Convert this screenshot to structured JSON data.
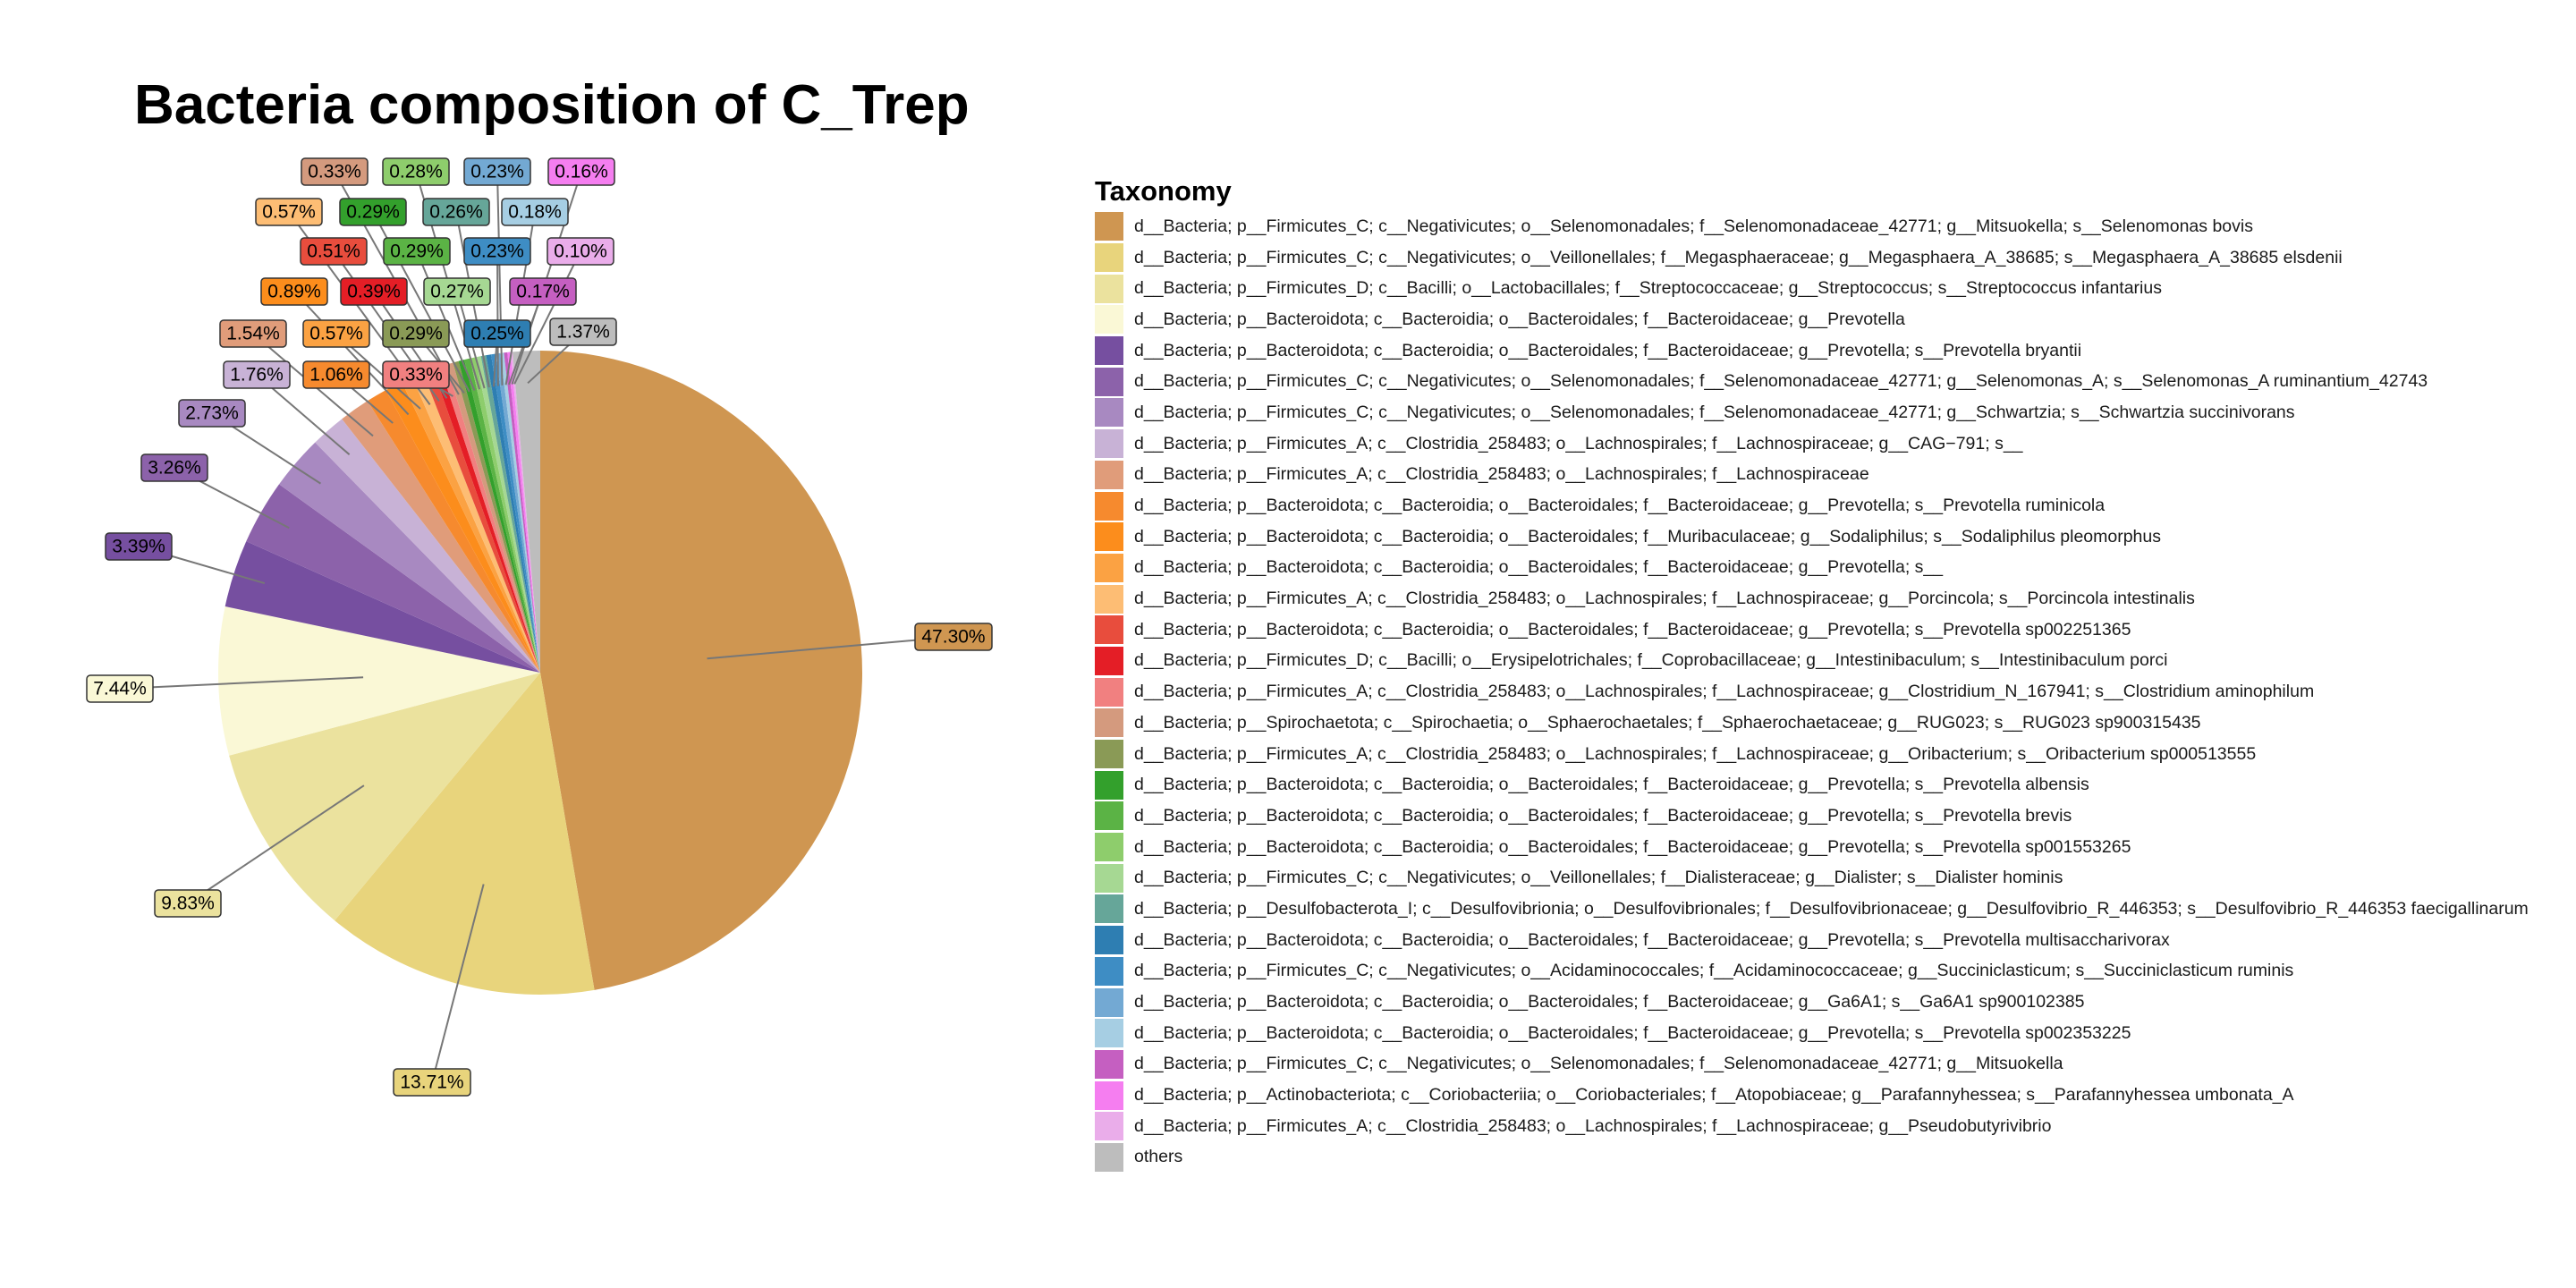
{
  "chart_data": {
    "type": "pie",
    "title": "Bacteria composition of C_Trep",
    "legend_title": "Taxonomy",
    "legend_position": "right",
    "slices": [
      {
        "label": "d__Bacteria; p__Firmicutes_C; c__Negativicutes; o__Selenomonadales; f__Selenomonadaceae_42771; g__Mitsuokella; s__Selenomonas bovis",
        "value": 47.3,
        "value_label": "47.30%",
        "color": "#CF9651"
      },
      {
        "label": "d__Bacteria; p__Firmicutes_C; c__Negativicutes; o__Veillonellales; f__Megasphaeraceae; g__Megasphaera_A_38685; s__Megasphaera_A_38685 elsdenii",
        "value": 13.71,
        "value_label": "13.71%",
        "color": "#E8D47C"
      },
      {
        "label": "d__Bacteria; p__Firmicutes_D; c__Bacilli; o__Lactobacillales; f__Streptococcaceae; g__Streptococcus; s__Streptococcus infantarius",
        "value": 9.83,
        "value_label": "9.83%",
        "color": "#EBE29E"
      },
      {
        "label": "d__Bacteria; p__Bacteroidota; c__Bacteroidia; o__Bacteroidales; f__Bacteroidaceae; g__Prevotella",
        "value": 7.44,
        "value_label": "7.44%",
        "color": "#FAF8D6"
      },
      {
        "label": "d__Bacteria; p__Bacteroidota; c__Bacteroidia; o__Bacteroidales; f__Bacteroidaceae; g__Prevotella; s__Prevotella bryantii",
        "value": 3.39,
        "value_label": "3.39%",
        "color": "#764FA0"
      },
      {
        "label": "d__Bacteria; p__Firmicutes_C; c__Negativicutes; o__Selenomonadales; f__Selenomonadaceae_42771; g__Selenomonas_A; s__Selenomonas_A ruminantium_42743",
        "value": 3.26,
        "value_label": "3.26%",
        "color": "#8C62AA"
      },
      {
        "label": "d__Bacteria; p__Firmicutes_C; c__Negativicutes; o__Selenomonadales; f__Selenomonadaceae_42771; g__Schwartzia; s__Schwartzia succinivorans",
        "value": 2.73,
        "value_label": "2.73%",
        "color": "#A889C1"
      },
      {
        "label": "d__Bacteria; p__Firmicutes_A; c__Clostridia_258483; o__Lachnospirales; f__Lachnospiraceae; g__CAG−791; s__",
        "value": 1.76,
        "value_label": "1.76%",
        "color": "#C8B2D6"
      },
      {
        "label": "d__Bacteria; p__Firmicutes_A; c__Clostridia_258483; o__Lachnospirales; f__Lachnospiraceae",
        "value": 1.54,
        "value_label": "1.54%",
        "color": "#E09C7A"
      },
      {
        "label": "d__Bacteria; p__Bacteroidota; c__Bacteroidia; o__Bacteroidales; f__Bacteroidaceae; g__Prevotella; s__Prevotella ruminicola",
        "value": 1.06,
        "value_label": "1.06%",
        "color": "#F68A2E"
      },
      {
        "label": "d__Bacteria; p__Bacteroidota; c__Bacteroidia; o__Bacteroidales; f__Muribaculaceae; g__Sodaliphilus; s__Sodaliphilus pleomorphus",
        "value": 0.89,
        "value_label": "0.89%",
        "color": "#FC8D1C"
      },
      {
        "label": "d__Bacteria; p__Bacteroidota; c__Bacteroidia; o__Bacteroidales; f__Bacteroidaceae; g__Prevotella; s__",
        "value": 0.57,
        "value_label": "0.57%",
        "color": "#FBA243"
      },
      {
        "label": "d__Bacteria; p__Firmicutes_A; c__Clostridia_258483; o__Lachnospirales; f__Lachnospiraceae; g__Porcincola; s__Porcincola intestinalis",
        "value": 0.57,
        "value_label": "0.57%",
        "color": "#FDBD74"
      },
      {
        "label": "d__Bacteria; p__Bacteroidota; c__Bacteroidia; o__Bacteroidales; f__Bacteroidaceae; g__Prevotella; s__Prevotella sp002251365",
        "value": 0.51,
        "value_label": "0.51%",
        "color": "#E84D3D"
      },
      {
        "label": "d__Bacteria; p__Firmicutes_D; c__Bacilli; o__Erysipelotrichales; f__Coprobacillaceae; g__Intestinibaculum; s__Intestinibaculum porci",
        "value": 0.39,
        "value_label": "0.39%",
        "color": "#E41E26"
      },
      {
        "label": "d__Bacteria; p__Firmicutes_A; c__Clostridia_258483; o__Lachnospirales; f__Lachnospiraceae; g__Clostridium_N_167941; s__Clostridium aminophilum",
        "value": 0.33,
        "value_label": "0.33%",
        "color": "#F18080"
      },
      {
        "label": "d__Bacteria; p__Spirochaetota; c__Spirochaetia; o__Sphaerochaetales; f__Sphaerochaetaceae; g__RUG023; s__RUG023 sp900315435",
        "value": 0.33,
        "value_label": "0.33%",
        "color": "#D49A7E"
      },
      {
        "label": "d__Bacteria; p__Firmicutes_A; c__Clostridia_258483; o__Lachnospirales; f__Lachnospiraceae; g__Oribacterium; s__Oribacterium sp000513555",
        "value": 0.29,
        "value_label": "0.29%",
        "color": "#8A9A56"
      },
      {
        "label": "d__Bacteria; p__Bacteroidota; c__Bacteroidia; o__Bacteroidales; f__Bacteroidaceae; g__Prevotella; s__Prevotella albensis",
        "value": 0.29,
        "value_label": "0.29%",
        "color": "#33A02C"
      },
      {
        "label": "d__Bacteria; p__Bacteroidota; c__Bacteroidia; o__Bacteroidales; f__Bacteroidaceae; g__Prevotella; s__Prevotella brevis",
        "value": 0.29,
        "value_label": "0.29%",
        "color": "#5BB345"
      },
      {
        "label": "d__Bacteria; p__Bacteroidota; c__Bacteroidia; o__Bacteroidales; f__Bacteroidaceae; g__Prevotella; s__Prevotella sp001553265",
        "value": 0.28,
        "value_label": "0.28%",
        "color": "#8ECD6C"
      },
      {
        "label": "d__Bacteria; p__Firmicutes_C; c__Negativicutes; o__Veillonellales; f__Dialisteraceae; g__Dialister; s__Dialister hominis",
        "value": 0.27,
        "value_label": "0.27%",
        "color": "#A6D893"
      },
      {
        "label": "d__Bacteria; p__Desulfobacterota_I; c__Desulfovibrionia; o__Desulfovibrionales; f__Desulfovibrionaceae; g__Desulfovibrio_R_446353; s__Desulfovibrio_R_446353 faecigallinarum",
        "value": 0.26,
        "value_label": "0.26%",
        "color": "#66A699"
      },
      {
        "label": "d__Bacteria; p__Bacteroidota; c__Bacteroidia; o__Bacteroidales; f__Bacteroidaceae; g__Prevotella; s__Prevotella multisaccharivorax",
        "value": 0.25,
        "value_label": "0.25%",
        "color": "#2E7EB2"
      },
      {
        "label": "d__Bacteria; p__Firmicutes_C; c__Negativicutes; o__Acidaminococcales; f__Acidaminococcaceae; g__Succiniclasticum; s__Succiniclasticum ruminis",
        "value": 0.23,
        "value_label": "0.23%",
        "color": "#3E8DC4"
      },
      {
        "label": "d__Bacteria; p__Bacteroidota; c__Bacteroidia; o__Bacteroidales; f__Bacteroidaceae; g__Ga6A1; s__Ga6A1 sp900102385",
        "value": 0.23,
        "value_label": "0.23%",
        "color": "#73A9D3"
      },
      {
        "label": "d__Bacteria; p__Bacteroidota; c__Bacteroidia; o__Bacteroidales; f__Bacteroidaceae; g__Prevotella; s__Prevotella sp002353225",
        "value": 0.18,
        "value_label": "0.18%",
        "color": "#A6CEE3"
      },
      {
        "label": "d__Bacteria; p__Firmicutes_C; c__Negativicutes; o__Selenomonadales; f__Selenomonadaceae_42771; g__Mitsuokella",
        "value": 0.17,
        "value_label": "0.17%",
        "color": "#C55FC1"
      },
      {
        "label": "d__Bacteria; p__Actinobacteriota; c__Coriobacteriia; o__Coriobacteriales; f__Atopobiaceae; g__Parafannyhessea; s__Parafannyhessea umbonata_A",
        "value": 0.16,
        "value_label": "0.16%",
        "color": "#F57EF0"
      },
      {
        "label": "d__Bacteria; p__Firmicutes_A; c__Clostridia_258483; o__Lachnospirales; f__Lachnospiraceae; g__Pseudobutyrivibrio",
        "value": 0.1,
        "value_label": "0.10%",
        "color": "#EAADEA"
      },
      {
        "label": "others",
        "value": 1.37,
        "value_label": "1.37%",
        "color": "#BDBDBD"
      }
    ]
  }
}
